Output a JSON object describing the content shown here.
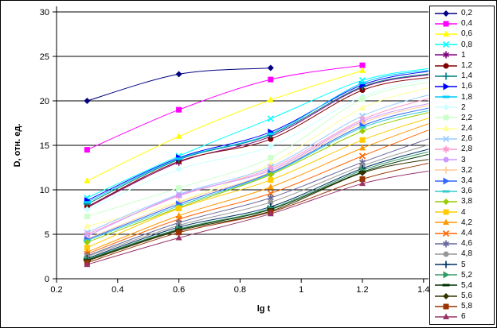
{
  "chart_data": {
    "type": "line",
    "title": "",
    "xlabel": "lg t",
    "ylabel": "D, отн. ед.",
    "xlim": [
      0.2,
      1.44
    ],
    "ylim": [
      0,
      30
    ],
    "grid": "horizontal",
    "legend_position": "right",
    "x_tick_values": [
      0.2,
      0.4,
      0.6,
      0.8,
      1,
      1.2,
      1.4
    ],
    "x_tick_labels": [
      "0.2",
      "0.4",
      "0.6",
      "0.8",
      "1",
      "1.2",
      "1.4"
    ],
    "y_tick_values": [
      0,
      5,
      10,
      15,
      20,
      25,
      30
    ],
    "y_tick_labels": [
      "0",
      "5",
      "10",
      "15",
      "20",
      "25",
      "30"
    ],
    "x": [
      0.3,
      0.6,
      0.9,
      1.2,
      1.43
    ],
    "series": [
      {
        "name": "0,2",
        "color": "#000080",
        "marker": "diamond",
        "values": [
          20,
          23,
          23.7,
          null,
          null
        ]
      },
      {
        "name": "0,4",
        "color": "#FF00FF",
        "marker": "square",
        "values": [
          14.5,
          19,
          22.4,
          24,
          null
        ]
      },
      {
        "name": "0,6",
        "color": "#FFFF00",
        "marker": "triangle",
        "values": [
          11,
          16,
          20.1,
          23.4,
          null
        ]
      },
      {
        "name": "0,8",
        "color": "#00FFFF",
        "marker": "x",
        "values": [
          9.1,
          13.8,
          18,
          22.3,
          23.7
        ]
      },
      {
        "name": "1",
        "color": "#800080",
        "marker": "asterisk",
        "values": [
          8.0,
          13.1,
          16.0,
          21.5,
          23.0
        ]
      },
      {
        "name": "1,2",
        "color": "#800000",
        "marker": "circle",
        "values": [
          8.1,
          13.2,
          15.7,
          21.2,
          22.7
        ]
      },
      {
        "name": "1,4",
        "color": "#008080",
        "marker": "plus",
        "values": [
          8.4,
          13.4,
          16.2,
          21.6,
          23.1
        ]
      },
      {
        "name": "1,6",
        "color": "#0000FF",
        "marker": "triangle-right",
        "values": [
          8.8,
          13.6,
          16.5,
          21.8,
          23.4
        ]
      },
      {
        "name": "1,8",
        "color": "#00CCFF",
        "marker": "dash",
        "values": [
          8.6,
          13.5,
          16.3,
          22.0,
          23.5
        ]
      },
      {
        "name": "2",
        "color": "#CCFFFF",
        "marker": "diamond",
        "values": [
          7.8,
          12.3,
          14.9,
          20.5,
          22.6
        ]
      },
      {
        "name": "2,2",
        "color": "#CCFFCC",
        "marker": "square",
        "values": [
          7.0,
          10.2,
          13.6,
          20.2,
          22.2
        ]
      },
      {
        "name": "2,4",
        "color": "#FFFF99",
        "marker": "triangle",
        "values": [
          5.9,
          8.7,
          12.9,
          19.2,
          21.6
        ]
      },
      {
        "name": "2,6",
        "color": "#99CCFF",
        "marker": "x",
        "values": [
          5.2,
          9.5,
          12.6,
          18.3,
          20.8
        ]
      },
      {
        "name": "2,8",
        "color": "#FF99CC",
        "marker": "asterisk",
        "values": [
          5.0,
          9.3,
          12.4,
          17.9,
          20.4
        ]
      },
      {
        "name": "3",
        "color": "#CC99FF",
        "marker": "circle",
        "values": [
          4.8,
          9.4,
          12.2,
          17.7,
          19.8
        ]
      },
      {
        "name": "3,2",
        "color": "#FFCC99",
        "marker": "plus",
        "values": [
          4.5,
          8.6,
          12.0,
          17.5,
          19.6
        ]
      },
      {
        "name": "3,4",
        "color": "#3366FF",
        "marker": "triangle-right",
        "values": [
          4.4,
          8.4,
          11.9,
          17.2,
          19.3
        ]
      },
      {
        "name": "3,6",
        "color": "#33CCCC",
        "marker": "dash",
        "values": [
          4.3,
          8.2,
          11.8,
          17.0,
          19.0
        ]
      },
      {
        "name": "3,8",
        "color": "#99CC00",
        "marker": "diamond",
        "values": [
          4.1,
          8.0,
          11.7,
          16.6,
          18.8
        ]
      },
      {
        "name": "4",
        "color": "#FFCC00",
        "marker": "square",
        "values": [
          3.5,
          7.9,
          11.1,
          15.6,
          18.2
        ]
      },
      {
        "name": "4,2",
        "color": "#FF9900",
        "marker": "triangle",
        "values": [
          3.0,
          7.1,
          10.3,
          14.7,
          17.6
        ]
      },
      {
        "name": "4,4",
        "color": "#FF6600",
        "marker": "x",
        "values": [
          2.8,
          6.7,
          9.6,
          13.8,
          16.9
        ]
      },
      {
        "name": "4,6",
        "color": "#666699",
        "marker": "asterisk",
        "values": [
          2.6,
          6.3,
          9.1,
          13.1,
          15.9
        ]
      },
      {
        "name": "4,8",
        "color": "#969696",
        "marker": "circle",
        "values": [
          2.5,
          6.0,
          8.6,
          12.7,
          15.2
        ]
      },
      {
        "name": "5",
        "color": "#003366",
        "marker": "plus",
        "values": [
          2.3,
          5.8,
          8.1,
          12.4,
          14.7
        ]
      },
      {
        "name": "5,2",
        "color": "#339966",
        "marker": "triangle-right",
        "values": [
          2.2,
          5.6,
          7.9,
          12.2,
          14.4
        ]
      },
      {
        "name": "5,4",
        "color": "#003300",
        "marker": "dash",
        "values": [
          2.1,
          5.5,
          7.8,
          12.0,
          14.1
        ]
      },
      {
        "name": "5,6",
        "color": "#333300",
        "marker": "diamond",
        "values": [
          2.0,
          5.4,
          7.6,
          11.9,
          13.5
        ]
      },
      {
        "name": "5,8",
        "color": "#993300",
        "marker": "square",
        "values": [
          1.8,
          5.2,
          7.5,
          11.2,
          13.1
        ]
      },
      {
        "name": "6",
        "color": "#993366",
        "marker": "triangle",
        "values": [
          1.6,
          4.6,
          7.3,
          10.7,
          12.2
        ]
      }
    ]
  }
}
